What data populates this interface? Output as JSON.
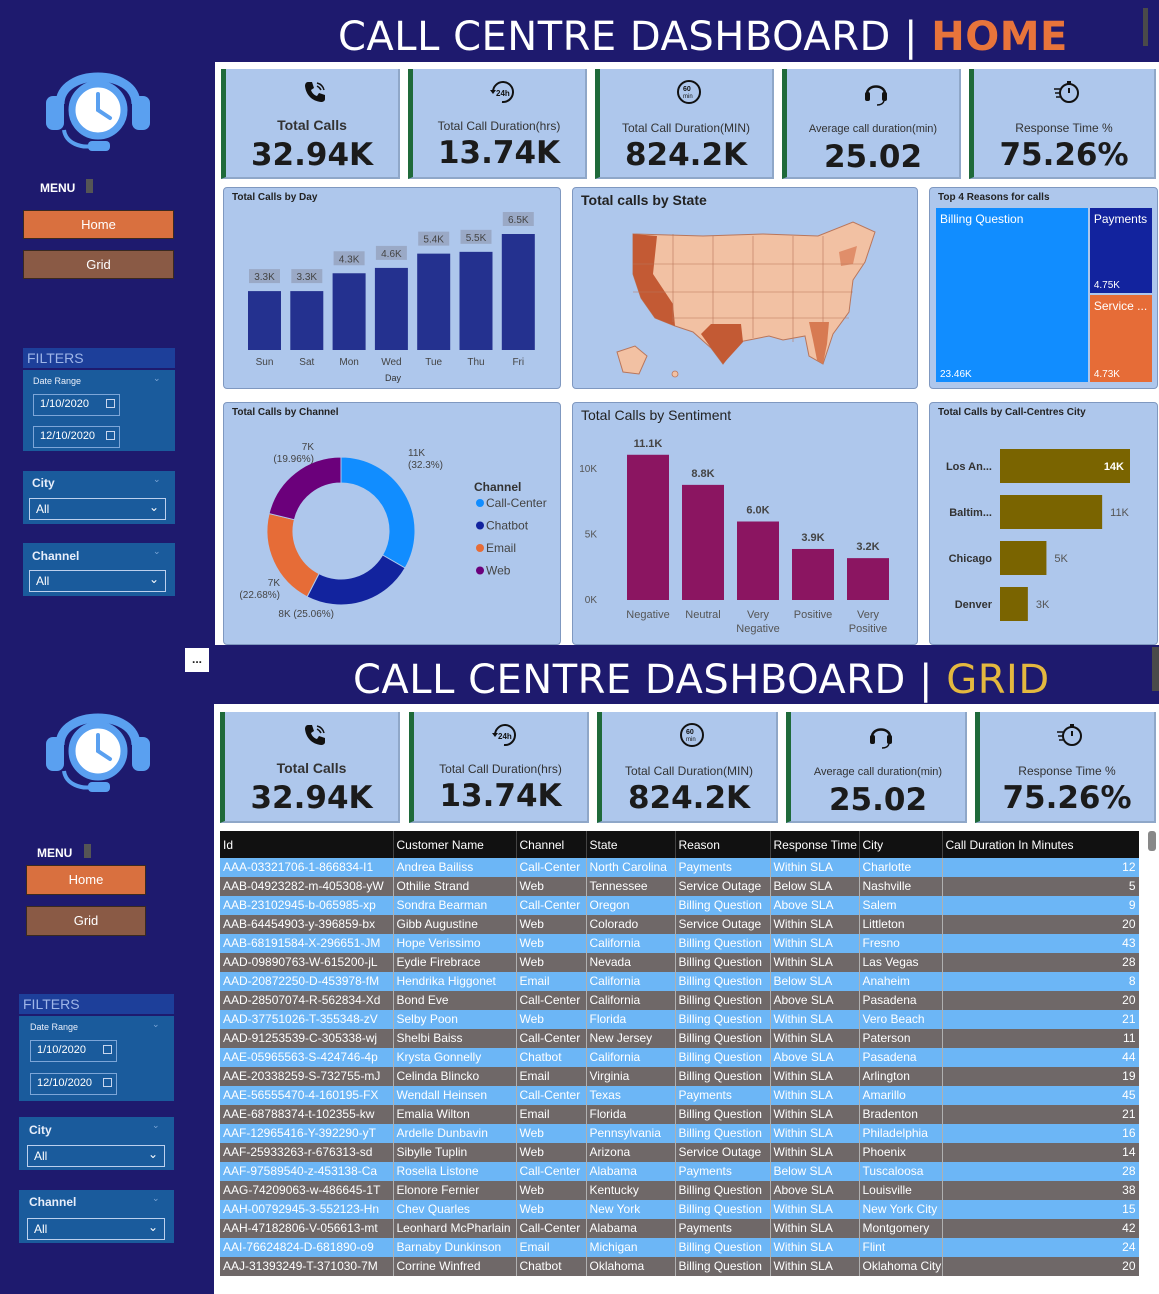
{
  "home": {
    "title_main": "CALL CENTRE DASHBOARD | ",
    "title_hl": "HOME",
    "menu_label": "MENU",
    "buttons": {
      "home": "Home",
      "grid": "Grid"
    },
    "filters": {
      "title": "FILTERS",
      "date_range_label": "Date Range",
      "date_from": "1/10/2020",
      "date_to": "12/10/2020",
      "city_label": "City",
      "city_value": "All",
      "channel_label": "Channel",
      "channel_value": "All"
    },
    "kpis": [
      {
        "icon": "phone-icon",
        "label": "Total Calls",
        "value": "32.94K"
      },
      {
        "icon": "clock-24h-icon",
        "label": "Total Call Duration(hrs)",
        "value": "13.74K"
      },
      {
        "icon": "timer-60min-icon",
        "label": "Total Call Duration(MIN)",
        "value": "824.2K"
      },
      {
        "icon": "headset-icon",
        "label": "Average call duration(min)",
        "value": "25.02"
      },
      {
        "icon": "stopwatch-icon",
        "label": "Response Time %",
        "value": "75.26%"
      }
    ],
    "cards": {
      "calls_by_day": "Total Calls by Day",
      "calls_by_state": "Total calls by State",
      "top_reasons": "Top 4 Reasons for calls",
      "calls_by_channel": "Total Calls by Channel",
      "calls_by_sentiment": "Total Calls by Sentiment",
      "calls_by_city": "Total Calls by Call-Centres City"
    }
  },
  "grid": {
    "title_main": "CALL CENTRE DASHBOARD | ",
    "title_hl": "GRID",
    "menu_label": "MENU",
    "buttons": {
      "home": "Home",
      "grid": "Grid"
    },
    "ellipsis": "...",
    "filters": {
      "title": "FILTERS",
      "date_range_label": "Date Range",
      "date_from": "1/10/2020",
      "date_to": "12/10/2020",
      "city_label": "City",
      "city_value": "All",
      "channel_label": "Channel",
      "channel_value": "All"
    },
    "kpis": [
      {
        "icon": "phone-icon",
        "label": "Total Calls",
        "value": "32.94K"
      },
      {
        "icon": "clock-24h-icon",
        "label": "Total Call Duration(hrs)",
        "value": "13.74K"
      },
      {
        "icon": "timer-60min-icon",
        "label": "Total Call Duration(MIN)",
        "value": "824.2K"
      },
      {
        "icon": "headset-icon",
        "label": "Average call duration(min)",
        "value": "25.02"
      },
      {
        "icon": "stopwatch-icon",
        "label": "Response Time %",
        "value": "75.26%"
      }
    ],
    "table": {
      "columns": [
        "Id",
        "Customer Name",
        "Channel",
        "State",
        "Reason",
        "Response Time",
        "City",
        "Call Duration In Minutes"
      ],
      "rows": [
        [
          "AAA-03321706-1-866834-I1",
          "Andrea Bailiss",
          "Call-Center",
          "North Carolina",
          "Payments",
          "Within SLA",
          "Charlotte",
          "12"
        ],
        [
          "AAB-04923282-m-405308-yW",
          "Othilie Strand",
          "Web",
          "Tennessee",
          "Service Outage",
          "Below SLA",
          "Nashville",
          "5"
        ],
        [
          "AAB-23102945-b-065985-xp",
          "Sondra Bearman",
          "Call-Center",
          "Oregon",
          "Billing Question",
          "Above SLA",
          "Salem",
          "9"
        ],
        [
          "AAB-64454903-y-396859-bx",
          "Gibb Augustine",
          "Web",
          "Colorado",
          "Service Outage",
          "Within SLA",
          "Littleton",
          "20"
        ],
        [
          "AAB-68191584-X-296651-JM",
          "Hope Verissimo",
          "Web",
          "California",
          "Billing Question",
          "Within SLA",
          "Fresno",
          "43"
        ],
        [
          "AAD-09890763-W-615200-jL",
          "Eydie Firebrace",
          "Web",
          "Nevada",
          "Billing Question",
          "Within SLA",
          "Las Vegas",
          "28"
        ],
        [
          "AAD-20872250-D-453978-fM",
          "Hendrika Higgonet",
          "Email",
          "California",
          "Billing Question",
          "Below SLA",
          "Anaheim",
          "8"
        ],
        [
          "AAD-28507074-R-562834-Xd",
          "Bond Eve",
          "Call-Center",
          "California",
          "Billing Question",
          "Above SLA",
          "Pasadena",
          "20"
        ],
        [
          "AAD-37751026-T-355348-zV",
          "Selby Poon",
          "Web",
          "Florida",
          "Billing Question",
          "Within SLA",
          "Vero Beach",
          "21"
        ],
        [
          "AAD-91253539-C-305338-wj",
          "Shelbi Baiss",
          "Call-Center",
          "New Jersey",
          "Billing Question",
          "Within SLA",
          "Paterson",
          "11"
        ],
        [
          "AAE-05965563-S-424746-4p",
          "Krysta Gonnelly",
          "Chatbot",
          "California",
          "Billing Question",
          "Above SLA",
          "Pasadena",
          "44"
        ],
        [
          "AAE-20338259-S-732755-mJ",
          "Celinda Blincko",
          "Email",
          "Virginia",
          "Billing Question",
          "Within SLA",
          "Arlington",
          "19"
        ],
        [
          "AAE-56555470-4-160195-FX",
          "Wendall Heinsen",
          "Call-Center",
          "Texas",
          "Payments",
          "Within SLA",
          "Amarillo",
          "45"
        ],
        [
          "AAE-68788374-t-102355-kw",
          "Emalia Wilton",
          "Email",
          "Florida",
          "Billing Question",
          "Within SLA",
          "Bradenton",
          "21"
        ],
        [
          "AAF-12965416-Y-392290-yT",
          "Ardelle Dunbavin",
          "Web",
          "Pennsylvania",
          "Billing Question",
          "Within SLA",
          "Philadelphia",
          "16"
        ],
        [
          "AAF-25933263-r-676313-sd",
          "Sibylle Tuplin",
          "Web",
          "Arizona",
          "Service Outage",
          "Within SLA",
          "Phoenix",
          "14"
        ],
        [
          "AAF-97589540-z-453138-Ca",
          "Roselia Listone",
          "Call-Center",
          "Alabama",
          "Payments",
          "Below SLA",
          "Tuscaloosa",
          "28"
        ],
        [
          "AAG-74209063-w-486645-1T",
          "Elonore Fernier",
          "Web",
          "Kentucky",
          "Billing Question",
          "Above SLA",
          "Louisville",
          "38"
        ],
        [
          "AAH-00792945-3-552123-Hn",
          "Chev Quarles",
          "Web",
          "New York",
          "Billing Question",
          "Within SLA",
          "New York City",
          "15"
        ],
        [
          "AAH-47182806-V-056613-mt",
          "Leonhard McPharlain",
          "Call-Center",
          "Alabama",
          "Payments",
          "Within SLA",
          "Montgomery",
          "42"
        ],
        [
          "AAI-76624824-D-681890-o9",
          "Barnaby Dunkinson",
          "Email",
          "Michigan",
          "Billing Question",
          "Within SLA",
          "Flint",
          "24"
        ],
        [
          "AAJ-31393249-T-371030-7M",
          "Corrine Winfred",
          "Chatbot",
          "Oklahoma",
          "Billing Question",
          "Within SLA",
          "Oklahoma City",
          "20"
        ]
      ]
    }
  },
  "chart_data": [
    {
      "type": "bar",
      "title": "Total Calls by Day",
      "xlabel": "Day",
      "categories": [
        "Sun",
        "Sat",
        "Mon",
        "Wed",
        "Tue",
        "Thu",
        "Fri"
      ],
      "values": [
        3.3,
        3.3,
        4.3,
        4.6,
        5.4,
        5.5,
        6.5
      ],
      "data_labels": [
        "3.3K",
        "3.3K",
        "4.3K",
        "4.6K",
        "5.4K",
        "5.5K",
        "6.5K"
      ],
      "color": "#24318f"
    },
    {
      "type": "treemap",
      "title": "Top 4 Reasons for calls",
      "items": [
        {
          "name": "Billing Question",
          "label": "23.46K",
          "value": 23.46,
          "color": "#118dff"
        },
        {
          "name": "Payments",
          "label": "4.75K",
          "value": 4.75,
          "color": "#12239e"
        },
        {
          "name": "Service ...",
          "label": "4.73K",
          "value": 4.73,
          "color": "#e66c37"
        }
      ]
    },
    {
      "type": "pie",
      "title": "Total Calls by Channel",
      "legend_title": "Channel",
      "legend_position": "right",
      "slices": [
        {
          "name": "Call-Center",
          "value": 11,
          "label": "11K",
          "pct": "(32.3%)",
          "color": "#118dff"
        },
        {
          "name": "Chatbot",
          "value": 8,
          "label": "8K (25.06%)",
          "pct": "",
          "color": "#12239e"
        },
        {
          "name": "Email",
          "value": 7,
          "label": "7K",
          "pct": "(22.68%)",
          "color": "#e66c37"
        },
        {
          "name": "Web",
          "value": 7,
          "label": "7K",
          "pct": "(19.96%)",
          "color": "#6b007b"
        }
      ]
    },
    {
      "type": "bar",
      "title": "Total Calls by Sentiment",
      "categories": [
        "Negative",
        "Neutral",
        "Very Negative",
        "Positive",
        "Very Positive"
      ],
      "category_lines": [
        [
          "Negative"
        ],
        [
          "Neutral"
        ],
        [
          "Very",
          "Negative"
        ],
        [
          "Positive"
        ],
        [
          "Very",
          "Positive"
        ]
      ],
      "values": [
        11.1,
        8.8,
        6.0,
        3.9,
        3.2
      ],
      "data_labels": [
        "11.1K",
        "8.8K",
        "6.0K",
        "3.9K",
        "3.2K"
      ],
      "ylim": [
        0,
        12
      ],
      "yticks": [
        {
          "v": 0,
          "t": "0K"
        },
        {
          "v": 5,
          "t": "5K"
        },
        {
          "v": 10,
          "t": "10K"
        }
      ],
      "color": "#8b1561"
    },
    {
      "type": "bar",
      "orientation": "horizontal",
      "title": "Total Calls by Call-Centres City",
      "categories": [
        "Los An...",
        "Baltim...",
        "Chicago",
        "Denver"
      ],
      "values": [
        14,
        11,
        5,
        3
      ],
      "data_labels": [
        "14K",
        "11K",
        "5K",
        "3K"
      ],
      "color": "#7a6400"
    }
  ]
}
